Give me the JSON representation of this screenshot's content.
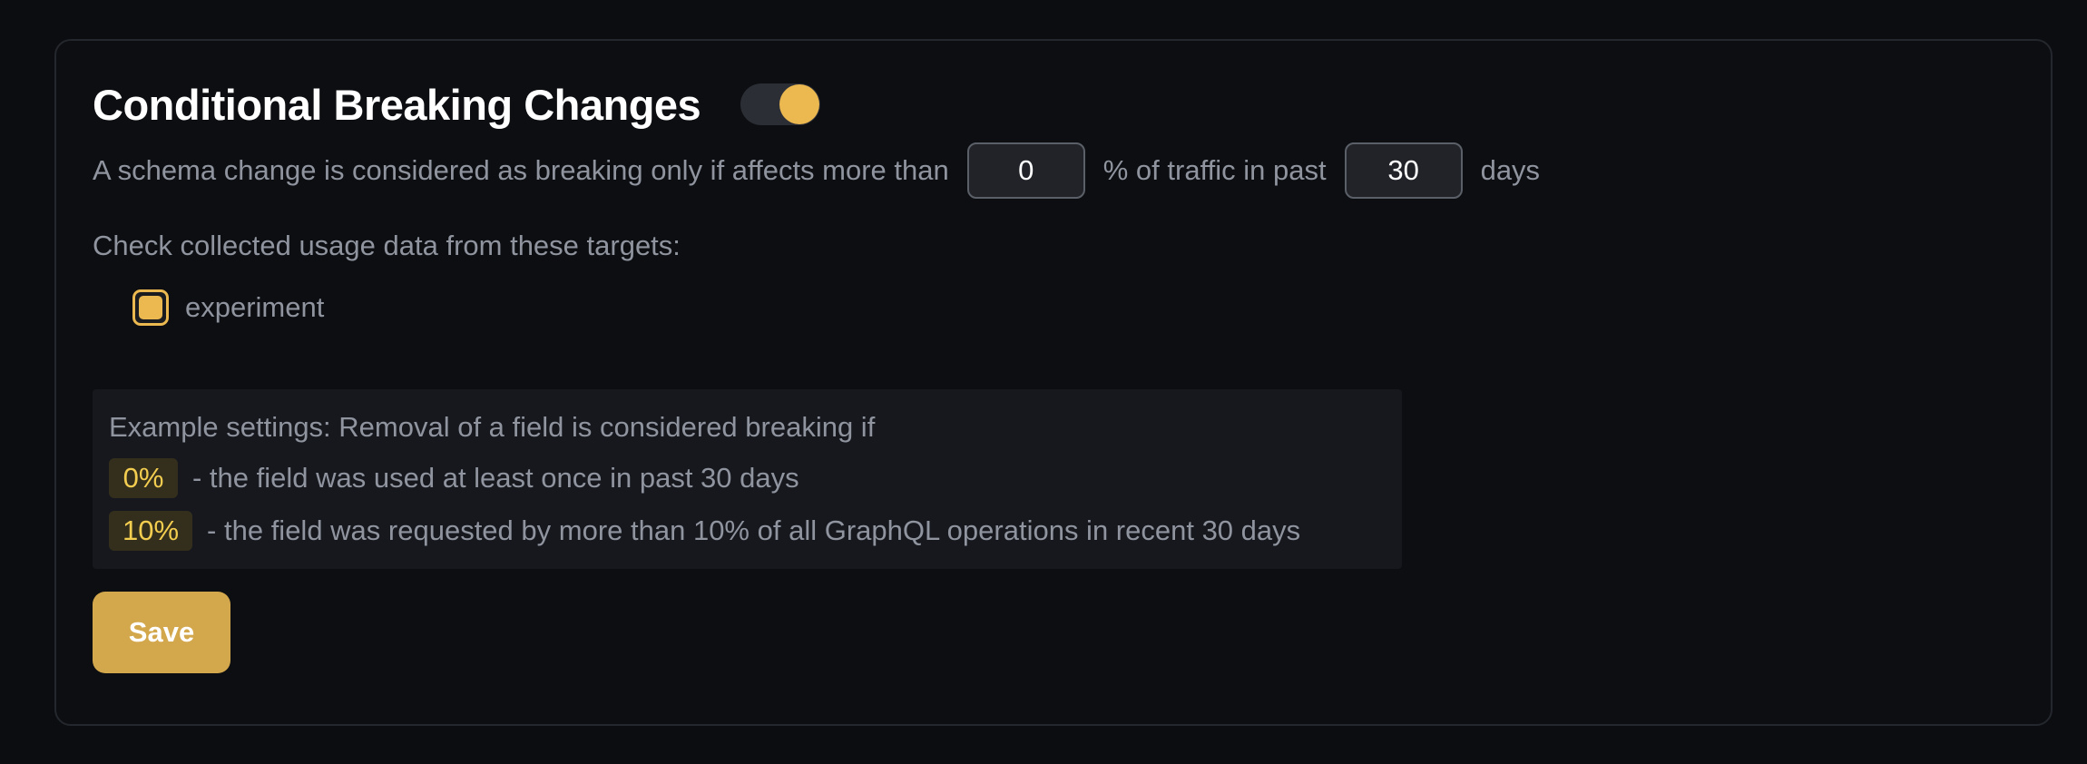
{
  "header": {
    "title": "Conditional Breaking Changes",
    "toggle": {
      "state": "on"
    }
  },
  "threshold": {
    "prefix": "A schema change is considered as breaking only if affects more than",
    "percentage_value": "0",
    "middle": "% of traffic in past",
    "days_value": "30",
    "suffix": "days"
  },
  "targets": {
    "label": "Check collected usage data from these targets:",
    "items": [
      {
        "name": "experiment",
        "checked": true
      }
    ]
  },
  "example": {
    "intro": "Example settings: Removal of a field is considered breaking if",
    "rows": [
      {
        "badge": "0%",
        "text": "- the field was used at least once in past 30 days"
      },
      {
        "badge": "10%",
        "text": "- the field was requested by more than 10% of all GraphQL operations in recent 30 days"
      }
    ]
  },
  "actions": {
    "save_label": "Save"
  },
  "colors": {
    "page_background": "#0b0d10",
    "card_border": "#24272d",
    "accent_yellow": "#ecb850",
    "save_button_background": "#d3a74c",
    "badge_background": "#342f1c",
    "badge_text": "#f3cd50",
    "body_text": "#8f949f",
    "title_text": "#ffffff",
    "input_background": "#212328",
    "input_border": "#5a5f68",
    "example_box_background": "#16181d",
    "toggle_track": "#2b2e35"
  }
}
